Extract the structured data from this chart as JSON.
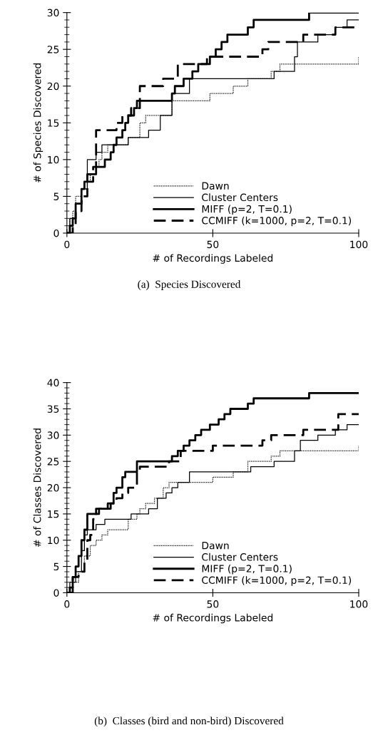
{
  "chart_data": [
    {
      "type": "step",
      "xlabel": "# of Recordings Labeled",
      "ylabel": "# of Species Discovered",
      "xlim": [
        0,
        100
      ],
      "xticks": [
        0,
        50,
        100
      ],
      "ylim": [
        0,
        30
      ],
      "yticks": [
        0,
        5,
        10,
        15,
        20,
        25,
        30
      ],
      "legend": "bottom right",
      "grid": false,
      "annotations": [
        "(a)  Species Discovered"
      ],
      "series": [
        {
          "name": "Dawn",
          "color": "#000000",
          "line_style": "dotted",
          "x": [
            0,
            1,
            2,
            3,
            5,
            7,
            8,
            9,
            10,
            11,
            12,
            14,
            21,
            25,
            27,
            36,
            49,
            57,
            62,
            70,
            73,
            100
          ],
          "values": [
            0,
            2,
            3,
            5,
            6,
            7,
            8,
            8,
            9,
            10,
            11,
            12,
            13,
            15,
            16,
            18,
            19,
            20,
            21,
            22,
            23,
            24
          ]
        },
        {
          "name": "Cluster Centers",
          "color": "#000000",
          "line_style": "solid",
          "x": [
            0,
            1,
            3,
            5,
            7,
            10,
            12,
            21,
            28,
            32,
            36,
            42,
            71,
            78,
            79,
            86,
            92,
            96,
            100
          ],
          "values": [
            0,
            2,
            4,
            6,
            10,
            11,
            12,
            13,
            14,
            16,
            19,
            21,
            22,
            24,
            26,
            27,
            28,
            29,
            29
          ]
        },
        {
          "name": "MIFF (p=2, T=0.1)",
          "color": "#000000",
          "line_style": "solid",
          "x": [
            0,
            1,
            2,
            3,
            5,
            6,
            7,
            10,
            13,
            15,
            16,
            17,
            19,
            20,
            21,
            23,
            24,
            36,
            37,
            40,
            43,
            45,
            49,
            51,
            53,
            55,
            62,
            64,
            83,
            100
          ],
          "values": [
            0,
            1,
            2,
            4,
            6,
            7,
            8,
            9,
            10,
            11,
            12,
            13,
            14,
            15,
            16,
            17,
            18,
            19,
            20,
            21,
            22,
            23,
            24,
            25,
            26,
            27,
            28,
            29,
            30,
            30
          ]
        },
        {
          "name": "CCMIFF (k=1000, p=2, T=0.1)",
          "color": "#000000",
          "line_style": "dashed",
          "x": [
            0,
            2,
            3,
            5,
            7,
            9,
            10,
            17,
            19,
            22,
            25,
            33,
            38,
            48,
            67,
            69,
            81,
            92,
            100
          ],
          "values": [
            0,
            1,
            3,
            5,
            7,
            9,
            14,
            15,
            16,
            17,
            20,
            21,
            23,
            24,
            25,
            26,
            27,
            28,
            28
          ]
        }
      ]
    },
    {
      "type": "step",
      "xlabel": "# of Recordings Labeled",
      "ylabel": "# of Classes Discovered",
      "xlim": [
        0,
        100
      ],
      "xticks": [
        0,
        50,
        100
      ],
      "ylim": [
        0,
        40
      ],
      "yticks": [
        0,
        5,
        10,
        15,
        20,
        25,
        30,
        35,
        40
      ],
      "legend": "bottom right",
      "grid": false,
      "annotations": [
        "(b)  Classes (bird and non-bird) Discovered"
      ],
      "series": [
        {
          "name": "Dawn",
          "color": "#000000",
          "line_style": "dotted",
          "x": [
            0,
            2,
            4,
            6,
            8,
            10,
            12,
            14,
            21,
            24,
            25,
            27,
            30,
            33,
            35,
            38,
            41,
            50,
            57,
            62,
            70,
            73,
            100
          ],
          "values": [
            0,
            2,
            4,
            7,
            9,
            10,
            11,
            12,
            14,
            15,
            16,
            17,
            18,
            20,
            21,
            21,
            21,
            22,
            23,
            25,
            26,
            27,
            28
          ]
        },
        {
          "name": "Cluster Centers",
          "color": "#000000",
          "line_style": "solid",
          "x": [
            0,
            1,
            3,
            5,
            6,
            7,
            10,
            13,
            22,
            28,
            31,
            34,
            36,
            38,
            42,
            63,
            71,
            78,
            80,
            86,
            92,
            96,
            100
          ],
          "values": [
            0,
            2,
            4,
            8,
            11,
            12,
            13,
            14,
            15,
            16,
            18,
            19,
            20,
            21,
            23,
            24,
            25,
            27,
            29,
            30,
            31,
            32,
            32
          ]
        },
        {
          "name": "MIFF (p=2, T=0.1)",
          "color": "#000000",
          "line_style": "solid",
          "x": [
            0,
            1,
            2,
            3,
            4,
            5,
            6,
            7,
            11,
            15,
            16,
            17,
            19,
            20,
            24,
            36,
            38,
            40,
            42,
            44,
            46,
            49,
            52,
            54,
            56,
            62,
            64,
            83,
            100
          ],
          "values": [
            0,
            1,
            3,
            5,
            7,
            10,
            12,
            15,
            16,
            17,
            19,
            20,
            22,
            23,
            25,
            26,
            27,
            28,
            29,
            30,
            31,
            32,
            33,
            34,
            35,
            36,
            37,
            38,
            38
          ]
        },
        {
          "name": "CCMIFF (k=1000, p=2, T=0.1)",
          "color": "#000000",
          "line_style": "dashed",
          "x": [
            0,
            2,
            4,
            6,
            7,
            8,
            9,
            10,
            14,
            17,
            19,
            21,
            24,
            25,
            35,
            39,
            50,
            67,
            70,
            81,
            93,
            100
          ],
          "values": [
            0,
            3,
            4,
            6,
            10,
            11,
            14,
            16,
            17,
            18,
            19,
            20,
            23,
            24,
            25,
            27,
            28,
            29,
            30,
            31,
            34,
            34
          ]
        }
      ]
    }
  ]
}
